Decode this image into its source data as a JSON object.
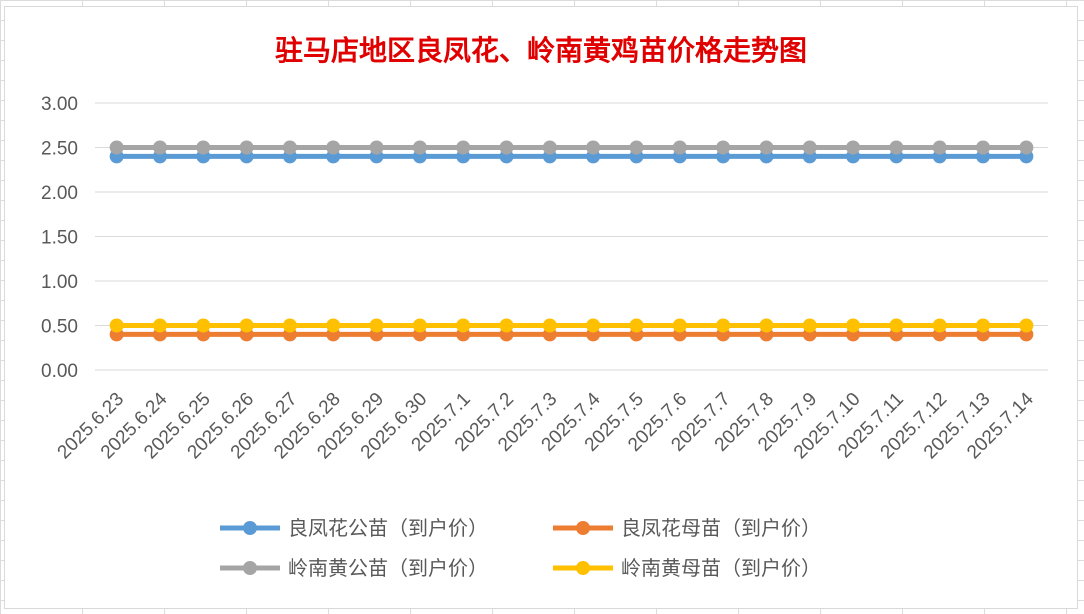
{
  "chart_data": {
    "type": "line",
    "title": "驻马店地区良凤花、岭南黄鸡苗价格走势图",
    "categories": [
      "2025.6.23",
      "2025.6.24",
      "2025.6.25",
      "2025.6.26",
      "2025.6.27",
      "2025.6.28",
      "2025.6.29",
      "2025.6.30",
      "2025.7.1",
      "2025.7.2",
      "2025.7.3",
      "2025.7.4",
      "2025.7.5",
      "2025.7.6",
      "2025.7.7",
      "2025.7.8",
      "2025.7.9",
      "2025.7.10",
      "2025.7.11",
      "2025.7.12",
      "2025.7.13",
      "2025.7.14"
    ],
    "ylim": [
      0,
      3
    ],
    "yticks": [
      "0.00",
      "0.50",
      "1.00",
      "1.50",
      "2.00",
      "2.50",
      "3.00"
    ],
    "grid": true,
    "legend_position": "bottom",
    "series": [
      {
        "name": "良凤花公苗（到户价）",
        "color": "#5b9bd5",
        "values": [
          2.4,
          2.4,
          2.4,
          2.4,
          2.4,
          2.4,
          2.4,
          2.4,
          2.4,
          2.4,
          2.4,
          2.4,
          2.4,
          2.4,
          2.4,
          2.4,
          2.4,
          2.4,
          2.4,
          2.4,
          2.4,
          2.4
        ]
      },
      {
        "name": "良凤花母苗（到户价）",
        "color": "#ed7d31",
        "values": [
          0.4,
          0.4,
          0.4,
          0.4,
          0.4,
          0.4,
          0.4,
          0.4,
          0.4,
          0.4,
          0.4,
          0.4,
          0.4,
          0.4,
          0.4,
          0.4,
          0.4,
          0.4,
          0.4,
          0.4,
          0.4,
          0.4
        ]
      },
      {
        "name": "岭南黄公苗（到户价）",
        "color": "#a5a5a5",
        "values": [
          2.5,
          2.5,
          2.5,
          2.5,
          2.5,
          2.5,
          2.5,
          2.5,
          2.5,
          2.5,
          2.5,
          2.5,
          2.5,
          2.5,
          2.5,
          2.5,
          2.5,
          2.5,
          2.5,
          2.5,
          2.5,
          2.5
        ]
      },
      {
        "name": "岭南黄母苗（到户价）",
        "color": "#ffc000",
        "values": [
          0.5,
          0.5,
          0.5,
          0.5,
          0.5,
          0.5,
          0.5,
          0.5,
          0.5,
          0.5,
          0.5,
          0.5,
          0.5,
          0.5,
          0.5,
          0.5,
          0.5,
          0.5,
          0.5,
          0.5,
          0.5,
          0.5
        ]
      }
    ]
  }
}
